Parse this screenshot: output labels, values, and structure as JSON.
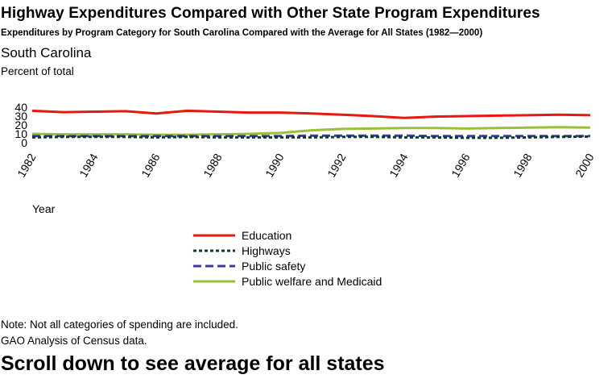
{
  "chart_data": {
    "type": "line",
    "title": "Highway Expenditures Compared with Other State Program Expenditures",
    "subtitle": "Expenditures by Program Category for South Carolina Compared with the Average for All States (1982—2000)",
    "region": "South Carolina",
    "ylabel": "Percent of total",
    "xlabel": "Year",
    "ylim": [
      0,
      40
    ],
    "yticks": [
      "40",
      "30",
      "20",
      "10",
      "0"
    ],
    "xlim": [
      1982,
      2000
    ],
    "xticks": [
      "1982",
      "1984",
      "1986",
      "1988",
      "1990",
      "1992",
      "1994",
      "1996",
      "1998",
      "2000"
    ],
    "grid": false,
    "legend_position": "bottom",
    "x": [
      1982,
      1983,
      1984,
      1985,
      1986,
      1987,
      1988,
      1989,
      1990,
      1991,
      1992,
      1993,
      1994,
      1995,
      1996,
      1997,
      1998,
      1999,
      2000
    ],
    "series": [
      {
        "name": "Education",
        "color": "#e8170f",
        "style": "solid",
        "values": [
          36,
          34.5,
          35,
          35.5,
          33,
          36,
          35,
          34,
          34,
          33,
          31.5,
          30,
          28,
          29.5,
          30,
          30.5,
          31,
          31.5,
          31
        ]
      },
      {
        "name": "Highways",
        "color": "#0d3b24",
        "style": "dotted",
        "values": [
          6,
          6.5,
          6.5,
          6.5,
          6,
          6.5,
          6,
          6,
          6,
          6,
          6.5,
          6.5,
          6,
          6,
          5.5,
          5.5,
          6,
          6.5,
          7
        ]
      },
      {
        "name": "Public safety",
        "color": "#3b3ba8",
        "style": "dashed",
        "values": [
          7.5,
          7.5,
          7.5,
          7.5,
          7.5,
          7.5,
          7.5,
          7.5,
          7.5,
          8,
          8,
          8,
          8,
          7.5,
          7.5,
          7.5,
          7.5,
          7.5,
          7.5
        ]
      },
      {
        "name": "Public welfare and Medicaid",
        "color": "#9cbf3a",
        "style": "solid",
        "values": [
          10,
          9.5,
          9.5,
          9.5,
          9,
          9,
          9.5,
          10,
          11,
          14,
          15.5,
          16,
          16.5,
          16.5,
          16,
          16.5,
          17,
          17.5,
          17
        ]
      }
    ]
  },
  "notes": {
    "note": "Note:  Not all categories of spending are included.",
    "source": "GAO Analysis of Census data.",
    "scroll": "Scroll down to see average for all states"
  }
}
